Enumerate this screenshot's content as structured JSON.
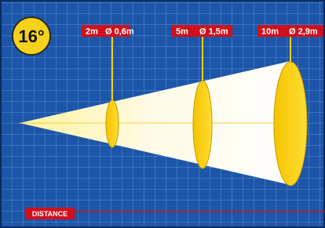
{
  "angle": "16°",
  "markers": [
    {
      "distance": "2m",
      "diameter": "Ø 0,6m"
    },
    {
      "distance": "5m",
      "diameter": "Ø 1,5m"
    },
    {
      "distance": "10m",
      "diameter": "Ø 2,9m"
    }
  ],
  "axis_label": "DISTANCE"
}
